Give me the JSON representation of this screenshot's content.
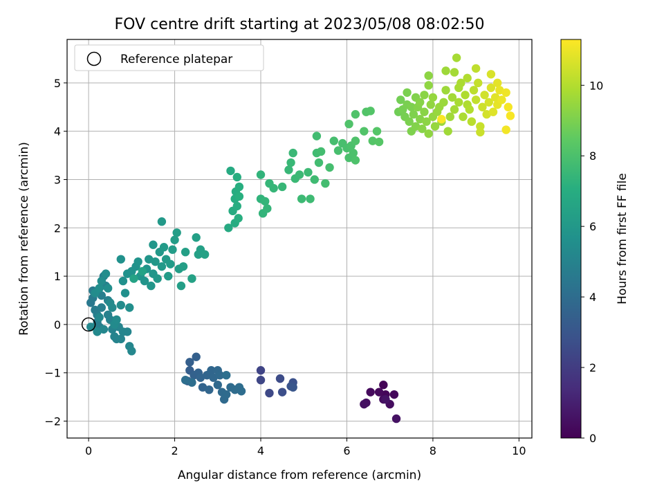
{
  "chart_data": {
    "type": "scatter",
    "title": "FOV centre drift starting at 2023/05/08 08:02:50",
    "xlabel": "Angular distance from reference (arcmin)",
    "ylabel": "Rotation from reference (arcmin)",
    "colorbar_label": "Hours from first FF file",
    "colormap": "viridis",
    "xlim": [
      -0.5,
      10.3
    ],
    "ylim": [
      -2.35,
      5.9
    ],
    "clim": [
      0,
      11.3
    ],
    "x_ticks": [
      0,
      2,
      4,
      6,
      8,
      10
    ],
    "y_ticks": [
      -2,
      -1,
      0,
      1,
      2,
      3,
      4,
      5
    ],
    "colorbar_ticks": [
      0,
      2,
      4,
      6,
      8,
      10
    ],
    "grid": true,
    "legend_position": "top-left",
    "reference": {
      "name": "Reference platepar",
      "x": 0,
      "y": 0
    },
    "points": [
      {
        "x": 6.85,
        "y": -1.25,
        "t": 0.1
      },
      {
        "x": 6.9,
        "y": -1.45,
        "t": 0.15
      },
      {
        "x": 7.1,
        "y": -1.45,
        "t": 0.2
      },
      {
        "x": 6.75,
        "y": -1.4,
        "t": 0.25
      },
      {
        "x": 6.55,
        "y": -1.4,
        "t": 0.3
      },
      {
        "x": 6.85,
        "y": -1.55,
        "t": 0.35
      },
      {
        "x": 7.0,
        "y": -1.65,
        "t": 0.4
      },
      {
        "x": 6.45,
        "y": -1.62,
        "t": 0.45
      },
      {
        "x": 6.4,
        "y": -1.65,
        "t": 0.5
      },
      {
        "x": 7.15,
        "y": -1.95,
        "t": 0.55
      },
      {
        "x": 6.9,
        "y": -1.55,
        "t": 0.6
      },
      {
        "x": 4.0,
        "y": -0.95,
        "t": 2.3
      },
      {
        "x": 4.0,
        "y": -1.15,
        "t": 2.4
      },
      {
        "x": 4.2,
        "y": -1.42,
        "t": 2.5
      },
      {
        "x": 4.45,
        "y": -1.12,
        "t": 2.6
      },
      {
        "x": 4.5,
        "y": -1.4,
        "t": 2.7
      },
      {
        "x": 4.75,
        "y": -1.2,
        "t": 2.8
      },
      {
        "x": 4.7,
        "y": -1.28,
        "t": 2.9
      },
      {
        "x": 4.75,
        "y": -1.3,
        "t": 3.0
      },
      {
        "x": 2.3,
        "y": -1.17,
        "t": 3.3
      },
      {
        "x": 2.35,
        "y": -0.95,
        "t": 3.35
      },
      {
        "x": 2.35,
        "y": -0.78,
        "t": 3.4
      },
      {
        "x": 2.5,
        "y": -0.67,
        "t": 3.45
      },
      {
        "x": 2.45,
        "y": -1.05,
        "t": 3.5
      },
      {
        "x": 2.55,
        "y": -1.0,
        "t": 3.55
      },
      {
        "x": 2.6,
        "y": -1.1,
        "t": 3.6
      },
      {
        "x": 2.65,
        "y": -1.3,
        "t": 3.62
      },
      {
        "x": 2.75,
        "y": -1.05,
        "t": 3.65
      },
      {
        "x": 2.8,
        "y": -1.35,
        "t": 3.7
      },
      {
        "x": 2.85,
        "y": -0.95,
        "t": 3.72
      },
      {
        "x": 2.9,
        "y": -1.1,
        "t": 3.75
      },
      {
        "x": 3.0,
        "y": -0.95,
        "t": 3.8
      },
      {
        "x": 3.0,
        "y": -1.25,
        "t": 3.82
      },
      {
        "x": 3.05,
        "y": -1.05,
        "t": 3.85
      },
      {
        "x": 3.1,
        "y": -1.4,
        "t": 3.88
      },
      {
        "x": 3.15,
        "y": -1.55,
        "t": 3.9
      },
      {
        "x": 3.2,
        "y": -1.45,
        "t": 3.93
      },
      {
        "x": 3.3,
        "y": -1.3,
        "t": 3.95
      },
      {
        "x": 3.4,
        "y": -1.35,
        "t": 3.97
      },
      {
        "x": 3.5,
        "y": -1.3,
        "t": 4.0
      },
      {
        "x": 3.55,
        "y": -1.38,
        "t": 4.02
      },
      {
        "x": 2.25,
        "y": -1.15,
        "t": 4.05
      },
      {
        "x": 2.4,
        "y": -1.2,
        "t": 4.08
      },
      {
        "x": 3.2,
        "y": -1.05,
        "t": 4.1
      },
      {
        "x": 0.05,
        "y": 0.45,
        "t": 4.5
      },
      {
        "x": 0.1,
        "y": 0.55,
        "t": 4.6
      },
      {
        "x": 0.1,
        "y": 0.7,
        "t": 4.65
      },
      {
        "x": 0.15,
        "y": 0.3,
        "t": 4.7
      },
      {
        "x": 0.2,
        "y": 0.2,
        "t": 4.72
      },
      {
        "x": 0.2,
        "y": 0.05,
        "t": 4.75
      },
      {
        "x": 0.25,
        "y": -0.05,
        "t": 4.78
      },
      {
        "x": 0.3,
        "y": 0.35,
        "t": 4.8
      },
      {
        "x": 0.3,
        "y": 0.6,
        "t": 4.82
      },
      {
        "x": 0.35,
        "y": 1.0,
        "t": 4.85
      },
      {
        "x": 0.4,
        "y": 0.8,
        "t": 4.88
      },
      {
        "x": 0.45,
        "y": 0.5,
        "t": 4.9
      },
      {
        "x": 0.45,
        "y": 0.2,
        "t": 4.92
      },
      {
        "x": 0.5,
        "y": 0.1,
        "t": 4.95
      },
      {
        "x": 0.55,
        "y": -0.1,
        "t": 4.97
      },
      {
        "x": 0.6,
        "y": -0.25,
        "t": 5.0
      },
      {
        "x": 0.65,
        "y": -0.3,
        "t": 5.02
      },
      {
        "x": 0.7,
        "y": -0.05,
        "t": 5.05
      },
      {
        "x": 0.75,
        "y": -0.3,
        "t": 5.07
      },
      {
        "x": 0.8,
        "y": -0.15,
        "t": 5.1
      },
      {
        "x": 0.9,
        "y": -0.15,
        "t": 5.12
      },
      {
        "x": 0.95,
        "y": -0.45,
        "t": 5.15
      },
      {
        "x": 1.0,
        "y": -0.55,
        "t": 5.18
      },
      {
        "x": 0.35,
        "y": -0.1,
        "t": 5.2
      },
      {
        "x": 0.25,
        "y": 0.15,
        "t": 5.22
      },
      {
        "x": 0.05,
        "y": -0.05,
        "t": 5.25
      },
      {
        "x": 0.2,
        "y": -0.15,
        "t": 5.27
      },
      {
        "x": 0.5,
        "y": 0.45,
        "t": 5.3
      },
      {
        "x": 0.55,
        "y": 0.35,
        "t": 5.32
      },
      {
        "x": 0.6,
        "y": 0.0,
        "t": 5.35
      },
      {
        "x": 0.65,
        "y": 0.1,
        "t": 5.38
      },
      {
        "x": 0.75,
        "y": 0.4,
        "t": 5.4
      },
      {
        "x": 0.15,
        "y": 0.65,
        "t": 5.42
      },
      {
        "x": 0.3,
        "y": 0.9,
        "t": 5.45
      },
      {
        "x": 0.4,
        "y": 1.05,
        "t": 5.47
      },
      {
        "x": 0.25,
        "y": 0.75,
        "t": 5.5
      },
      {
        "x": 0.45,
        "y": 0.75,
        "t": 5.52
      },
      {
        "x": 0.95,
        "y": 0.35,
        "t": 5.55
      },
      {
        "x": 0.8,
        "y": 0.9,
        "t": 5.6
      },
      {
        "x": 0.85,
        "y": 0.65,
        "t": 5.62
      },
      {
        "x": 0.75,
        "y": 1.35,
        "t": 5.65
      },
      {
        "x": 0.9,
        "y": 1.05,
        "t": 5.68
      },
      {
        "x": 1.0,
        "y": 1.1,
        "t": 5.7
      },
      {
        "x": 1.1,
        "y": 1.2,
        "t": 5.72
      },
      {
        "x": 1.15,
        "y": 1.3,
        "t": 5.75
      },
      {
        "x": 1.2,
        "y": 1.0,
        "t": 5.78
      },
      {
        "x": 1.3,
        "y": 0.9,
        "t": 5.8
      },
      {
        "x": 1.35,
        "y": 1.15,
        "t": 5.82
      },
      {
        "x": 1.4,
        "y": 1.35,
        "t": 5.85
      },
      {
        "x": 1.45,
        "y": 0.8,
        "t": 5.88
      },
      {
        "x": 1.5,
        "y": 1.05,
        "t": 5.9
      },
      {
        "x": 1.5,
        "y": 1.65,
        "t": 5.92
      },
      {
        "x": 1.55,
        "y": 1.3,
        "t": 5.95
      },
      {
        "x": 1.6,
        "y": 0.95,
        "t": 5.97
      },
      {
        "x": 1.65,
        "y": 1.5,
        "t": 6.0
      },
      {
        "x": 1.7,
        "y": 1.2,
        "t": 6.02
      },
      {
        "x": 1.7,
        "y": 2.13,
        "t": 6.05
      },
      {
        "x": 1.75,
        "y": 1.6,
        "t": 6.07
      },
      {
        "x": 1.8,
        "y": 1.35,
        "t": 6.1
      },
      {
        "x": 1.85,
        "y": 1.0,
        "t": 6.12
      },
      {
        "x": 1.9,
        "y": 1.25,
        "t": 6.15
      },
      {
        "x": 1.95,
        "y": 1.55,
        "t": 6.17
      },
      {
        "x": 2.0,
        "y": 1.75,
        "t": 6.2
      },
      {
        "x": 2.05,
        "y": 1.9,
        "t": 6.22
      },
      {
        "x": 2.1,
        "y": 1.15,
        "t": 6.25
      },
      {
        "x": 2.15,
        "y": 0.8,
        "t": 6.27
      },
      {
        "x": 2.2,
        "y": 1.2,
        "t": 6.3
      },
      {
        "x": 2.25,
        "y": 1.5,
        "t": 6.32
      },
      {
        "x": 2.5,
        "y": 1.8,
        "t": 6.35
      },
      {
        "x": 2.55,
        "y": 1.45,
        "t": 6.37
      },
      {
        "x": 2.6,
        "y": 1.55,
        "t": 6.4
      },
      {
        "x": 2.7,
        "y": 1.45,
        "t": 6.42
      },
      {
        "x": 2.4,
        "y": 0.95,
        "t": 6.45
      },
      {
        "x": 1.25,
        "y": 1.1,
        "t": 6.47
      },
      {
        "x": 1.05,
        "y": 0.95,
        "t": 6.5
      },
      {
        "x": 3.25,
        "y": 2.0,
        "t": 6.8
      },
      {
        "x": 3.3,
        "y": 3.18,
        "t": 6.85
      },
      {
        "x": 3.35,
        "y": 2.35,
        "t": 6.9
      },
      {
        "x": 3.4,
        "y": 2.1,
        "t": 6.92
      },
      {
        "x": 3.4,
        "y": 2.6,
        "t": 6.95
      },
      {
        "x": 3.42,
        "y": 2.75,
        "t": 6.97
      },
      {
        "x": 3.45,
        "y": 2.45,
        "t": 7.0
      },
      {
        "x": 3.45,
        "y": 3.05,
        "t": 7.02
      },
      {
        "x": 3.48,
        "y": 2.2,
        "t": 7.05
      },
      {
        "x": 3.5,
        "y": 2.85,
        "t": 7.07
      },
      {
        "x": 3.5,
        "y": 2.65,
        "t": 7.1
      },
      {
        "x": 4.0,
        "y": 2.6,
        "t": 7.3
      },
      {
        "x": 4.0,
        "y": 3.1,
        "t": 7.32
      },
      {
        "x": 4.05,
        "y": 2.3,
        "t": 7.35
      },
      {
        "x": 4.1,
        "y": 2.55,
        "t": 7.37
      },
      {
        "x": 4.15,
        "y": 2.4,
        "t": 7.4
      },
      {
        "x": 4.2,
        "y": 2.92,
        "t": 7.42
      },
      {
        "x": 4.3,
        "y": 2.82,
        "t": 7.45
      },
      {
        "x": 4.5,
        "y": 2.85,
        "t": 7.47
      },
      {
        "x": 4.65,
        "y": 3.2,
        "t": 7.5
      },
      {
        "x": 4.7,
        "y": 3.35,
        "t": 7.52
      },
      {
        "x": 4.75,
        "y": 3.55,
        "t": 7.55
      },
      {
        "x": 4.8,
        "y": 3.02,
        "t": 7.57
      },
      {
        "x": 4.9,
        "y": 3.1,
        "t": 7.6
      },
      {
        "x": 4.95,
        "y": 2.6,
        "t": 7.62
      },
      {
        "x": 5.1,
        "y": 3.15,
        "t": 7.65
      },
      {
        "x": 5.15,
        "y": 2.6,
        "t": 7.67
      },
      {
        "x": 5.25,
        "y": 3.0,
        "t": 7.7
      },
      {
        "x": 5.3,
        "y": 3.55,
        "t": 7.72
      },
      {
        "x": 5.3,
        "y": 3.9,
        "t": 7.75
      },
      {
        "x": 5.35,
        "y": 3.35,
        "t": 7.77
      },
      {
        "x": 5.4,
        "y": 3.58,
        "t": 7.8
      },
      {
        "x": 5.5,
        "y": 2.92,
        "t": 7.82
      },
      {
        "x": 5.6,
        "y": 3.25,
        "t": 7.85
      },
      {
        "x": 5.7,
        "y": 3.8,
        "t": 7.87
      },
      {
        "x": 5.8,
        "y": 3.6,
        "t": 7.9
      },
      {
        "x": 5.9,
        "y": 3.75,
        "t": 7.92
      },
      {
        "x": 6.0,
        "y": 3.65,
        "t": 7.95
      },
      {
        "x": 6.05,
        "y": 3.45,
        "t": 7.97
      },
      {
        "x": 6.1,
        "y": 3.7,
        "t": 8.0
      },
      {
        "x": 6.15,
        "y": 3.55,
        "t": 8.02
      },
      {
        "x": 6.2,
        "y": 3.4,
        "t": 8.05
      },
      {
        "x": 6.2,
        "y": 3.8,
        "t": 8.07
      },
      {
        "x": 6.05,
        "y": 4.15,
        "t": 8.1
      },
      {
        "x": 6.2,
        "y": 4.35,
        "t": 8.12
      },
      {
        "x": 6.4,
        "y": 4.0,
        "t": 8.15
      },
      {
        "x": 6.45,
        "y": 4.4,
        "t": 8.17
      },
      {
        "x": 6.55,
        "y": 4.42,
        "t": 8.2
      },
      {
        "x": 6.6,
        "y": 3.8,
        "t": 8.22
      },
      {
        "x": 6.7,
        "y": 4.0,
        "t": 8.25
      },
      {
        "x": 6.75,
        "y": 3.78,
        "t": 8.27
      },
      {
        "x": 7.2,
        "y": 4.4,
        "t": 8.8
      },
      {
        "x": 7.25,
        "y": 4.65,
        "t": 8.85
      },
      {
        "x": 7.3,
        "y": 4.45,
        "t": 8.9
      },
      {
        "x": 7.35,
        "y": 4.3,
        "t": 8.92
      },
      {
        "x": 7.4,
        "y": 4.55,
        "t": 8.95
      },
      {
        "x": 7.4,
        "y": 4.8,
        "t": 8.97
      },
      {
        "x": 7.45,
        "y": 4.2,
        "t": 9.0
      },
      {
        "x": 7.5,
        "y": 4.5,
        "t": 9.02
      },
      {
        "x": 7.5,
        "y": 4.0,
        "t": 9.05
      },
      {
        "x": 7.55,
        "y": 4.35,
        "t": 9.07
      },
      {
        "x": 7.6,
        "y": 4.7,
        "t": 9.1
      },
      {
        "x": 7.6,
        "y": 4.1,
        "t": 9.12
      },
      {
        "x": 7.65,
        "y": 4.5,
        "t": 9.15
      },
      {
        "x": 7.7,
        "y": 4.25,
        "t": 9.17
      },
      {
        "x": 7.7,
        "y": 4.6,
        "t": 9.2
      },
      {
        "x": 7.75,
        "y": 4.05,
        "t": 9.22
      },
      {
        "x": 7.8,
        "y": 4.4,
        "t": 9.25
      },
      {
        "x": 7.8,
        "y": 4.75,
        "t": 9.27
      },
      {
        "x": 7.85,
        "y": 4.2,
        "t": 9.3
      },
      {
        "x": 7.9,
        "y": 5.15,
        "t": 9.32
      },
      {
        "x": 7.9,
        "y": 4.95,
        "t": 9.35
      },
      {
        "x": 7.9,
        "y": 3.95,
        "t": 9.37
      },
      {
        "x": 7.95,
        "y": 4.55,
        "t": 9.4
      },
      {
        "x": 8.0,
        "y": 4.3,
        "t": 9.42
      },
      {
        "x": 8.0,
        "y": 4.7,
        "t": 9.45
      },
      {
        "x": 8.05,
        "y": 4.1,
        "t": 9.47
      },
      {
        "x": 8.1,
        "y": 4.4,
        "t": 9.5
      },
      {
        "x": 8.15,
        "y": 4.5,
        "t": 9.52
      },
      {
        "x": 8.2,
        "y": 4.2,
        "t": 9.55
      },
      {
        "x": 8.25,
        "y": 4.6,
        "t": 9.57
      },
      {
        "x": 8.3,
        "y": 4.85,
        "t": 9.6
      },
      {
        "x": 8.3,
        "y": 5.25,
        "t": 9.62
      },
      {
        "x": 8.35,
        "y": 4.0,
        "t": 9.65
      },
      {
        "x": 8.4,
        "y": 4.3,
        "t": 9.67
      },
      {
        "x": 8.45,
        "y": 4.7,
        "t": 9.7
      },
      {
        "x": 8.5,
        "y": 5.22,
        "t": 9.72
      },
      {
        "x": 8.5,
        "y": 4.45,
        "t": 9.75
      },
      {
        "x": 8.55,
        "y": 5.52,
        "t": 9.77
      },
      {
        "x": 8.6,
        "y": 4.9,
        "t": 9.8
      },
      {
        "x": 8.6,
        "y": 4.6,
        "t": 9.82
      },
      {
        "x": 8.65,
        "y": 5.0,
        "t": 9.85
      },
      {
        "x": 8.7,
        "y": 4.3,
        "t": 9.87
      },
      {
        "x": 8.75,
        "y": 4.75,
        "t": 9.9
      },
      {
        "x": 8.8,
        "y": 4.55,
        "t": 9.92
      },
      {
        "x": 8.8,
        "y": 5.1,
        "t": 9.95
      },
      {
        "x": 8.85,
        "y": 4.45,
        "t": 9.97
      },
      {
        "x": 8.9,
        "y": 4.2,
        "t": 10.1
      },
      {
        "x": 8.95,
        "y": 4.85,
        "t": 10.15
      },
      {
        "x": 9.0,
        "y": 5.3,
        "t": 10.2
      },
      {
        "x": 9.0,
        "y": 4.65,
        "t": 10.25
      },
      {
        "x": 9.05,
        "y": 5.0,
        "t": 10.3
      },
      {
        "x": 9.1,
        "y": 4.1,
        "t": 10.35
      },
      {
        "x": 9.1,
        "y": 3.98,
        "t": 10.4
      },
      {
        "x": 9.15,
        "y": 4.5,
        "t": 10.45
      },
      {
        "x": 9.2,
        "y": 4.75,
        "t": 10.5
      },
      {
        "x": 9.25,
        "y": 4.35,
        "t": 10.55
      },
      {
        "x": 9.3,
        "y": 4.6,
        "t": 10.6
      },
      {
        "x": 9.35,
        "y": 5.18,
        "t": 10.65
      },
      {
        "x": 9.35,
        "y": 4.9,
        "t": 10.7
      },
      {
        "x": 9.4,
        "y": 4.4,
        "t": 10.75
      },
      {
        "x": 9.45,
        "y": 4.7,
        "t": 10.8
      },
      {
        "x": 9.5,
        "y": 5.0,
        "t": 10.85
      },
      {
        "x": 9.5,
        "y": 4.55,
        "t": 10.9
      },
      {
        "x": 9.55,
        "y": 4.85,
        "t": 10.95
      },
      {
        "x": 9.6,
        "y": 4.65,
        "t": 11.0
      },
      {
        "x": 9.7,
        "y": 4.8,
        "t": 11.05
      },
      {
        "x": 9.7,
        "y": 4.03,
        "t": 11.1
      },
      {
        "x": 9.75,
        "y": 4.5,
        "t": 11.15
      },
      {
        "x": 9.8,
        "y": 4.32,
        "t": 11.2
      },
      {
        "x": 8.2,
        "y": 4.25,
        "t": 11.25
      }
    ]
  }
}
